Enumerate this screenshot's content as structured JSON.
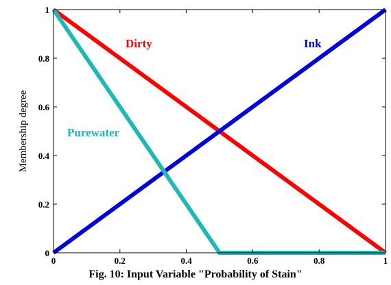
{
  "caption": "Fig. 10: Input Variable \"Probability of Stain\"",
  "chart_data": {
    "type": "line",
    "ylabel": "Membership degree",
    "xlim": [
      0,
      1
    ],
    "ylim": [
      0,
      1
    ],
    "x_ticks": [
      "0",
      "0.2",
      "0.4",
      "0.6",
      "0.8",
      "1"
    ],
    "y_ticks": [
      "0",
      "0.2",
      "0.4",
      "0.6",
      "0.8",
      "1"
    ],
    "grid": false,
    "series": [
      {
        "name": "Dirty",
        "color": "#ff0000",
        "x": [
          0,
          1
        ],
        "y": [
          1,
          0
        ]
      },
      {
        "name": "Ink",
        "color": "#0000dd",
        "x": [
          0,
          1
        ],
        "y": [
          0,
          1
        ]
      },
      {
        "name": "Purewater",
        "color": "#1fb8b8",
        "x": [
          0,
          0.5,
          1
        ],
        "y": [
          1,
          0,
          0
        ]
      }
    ]
  }
}
